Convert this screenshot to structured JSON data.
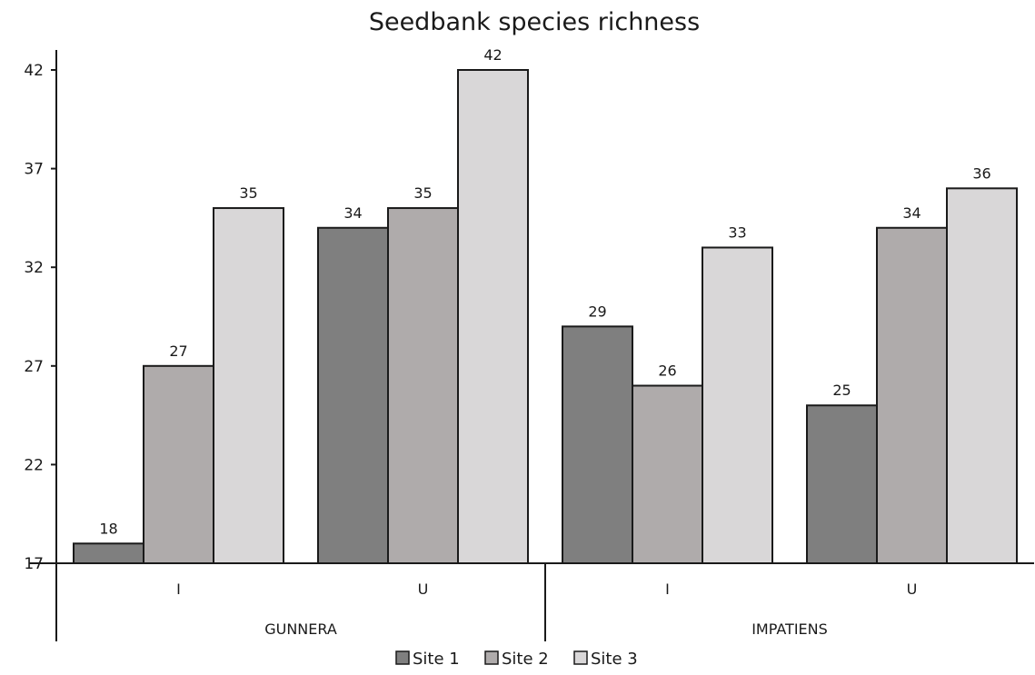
{
  "chart_data": {
    "type": "bar",
    "title": "Seedbank species richness",
    "xlabel": "",
    "ylabel": "",
    "ylim": [
      17,
      42
    ],
    "yticks": [
      17,
      22,
      27,
      32,
      37,
      42
    ],
    "groups": [
      {
        "label": "GUNNERA",
        "categories": [
          "I",
          "U"
        ]
      },
      {
        "label": "IMPATIENS",
        "categories": [
          "I",
          "U"
        ]
      }
    ],
    "categories": [
      "GUNNERA I",
      "GUNNERA U",
      "IMPATIENS I",
      "IMPATIENS U"
    ],
    "series": [
      {
        "name": "Site 1",
        "color": "#7f7f7f",
        "values": [
          18,
          34,
          29,
          25
        ]
      },
      {
        "name": "Site 2",
        "color": "#afabab",
        "values": [
          27,
          35,
          26,
          34
        ]
      },
      {
        "name": "Site 3",
        "color": "#d9d7d8",
        "values": [
          35,
          42,
          33,
          36
        ]
      }
    ],
    "data_labels": true,
    "grid": false,
    "legend": "bottom"
  }
}
